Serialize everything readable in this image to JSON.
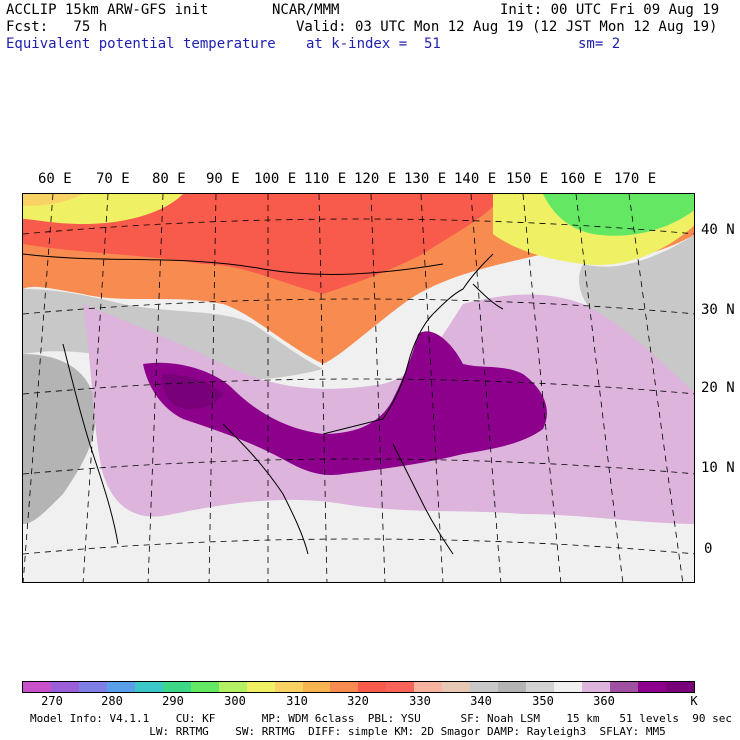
{
  "header": {
    "line1_left": "ACCLIP 15km ARW-GFS init",
    "line1_center": "NCAR/MMM",
    "line1_right": "Init: 00 UTC Fri 09 Aug 19",
    "line2_left": "Fcst:   75 h",
    "line2_right": "Valid: 03 UTC Mon 12 Aug 19 (12 JST Mon 12 Aug 19)",
    "line3_left": "Equivalent potential temperature",
    "line3_center": "at k-index =  51",
    "line3_right": "sm= 2"
  },
  "map": {
    "longitude_labels": [
      "60 E",
      "70 E",
      "80 E",
      "90 E",
      "100 E",
      "110 E",
      "120 E",
      "130 E",
      "140 E",
      "150 E",
      "160 E",
      "170 E"
    ],
    "latitude_labels": [
      "40 N",
      "30 N",
      "20 N",
      "10 N",
      "0"
    ]
  },
  "colorbar": {
    "colors": [
      "#c850c8",
      "#9b5fd8",
      "#7f7fe6",
      "#5aa0e8",
      "#3cc8c8",
      "#3cd888",
      "#64e864",
      "#b4f064",
      "#f0f064",
      "#f8d264",
      "#f8b450",
      "#f88c50",
      "#f85a4b",
      "#f8645a",
      "#f8b4a0",
      "#e6c8b4",
      "#c8c8c8",
      "#b4b4b4",
      "#d2d2d2",
      "#f0f0f0",
      "#dcb4dc",
      "#a050a0",
      "#8c008c",
      "#780078"
    ],
    "labels": [
      "270",
      "280",
      "290",
      "300",
      "310",
      "320",
      "330",
      "340",
      "350",
      "360"
    ],
    "unit": "K"
  },
  "footer": {
    "line1": "Model Info: V4.1.1    CU: KF       MP: WDM 6class  PBL: YSU      SF: Noah LSM    15 km   51 levels  90 sec",
    "line2": "                  LW: RRTMG    SW: RRTMG  DIFF: simple KM: 2D Smagor DAMP: Rayleigh3  SFLAY: MM5"
  },
  "colors": {
    "title_blue": "#2020b0",
    "warm_red": "#f85a4b",
    "orange": "#f88c50",
    "yellow": "#f0f064",
    "green": "#64e864",
    "gray": "#c8c8c8",
    "light_gray": "#f0f0f0",
    "light_purple": "#dcb4dc",
    "purple": "#8c008c"
  }
}
